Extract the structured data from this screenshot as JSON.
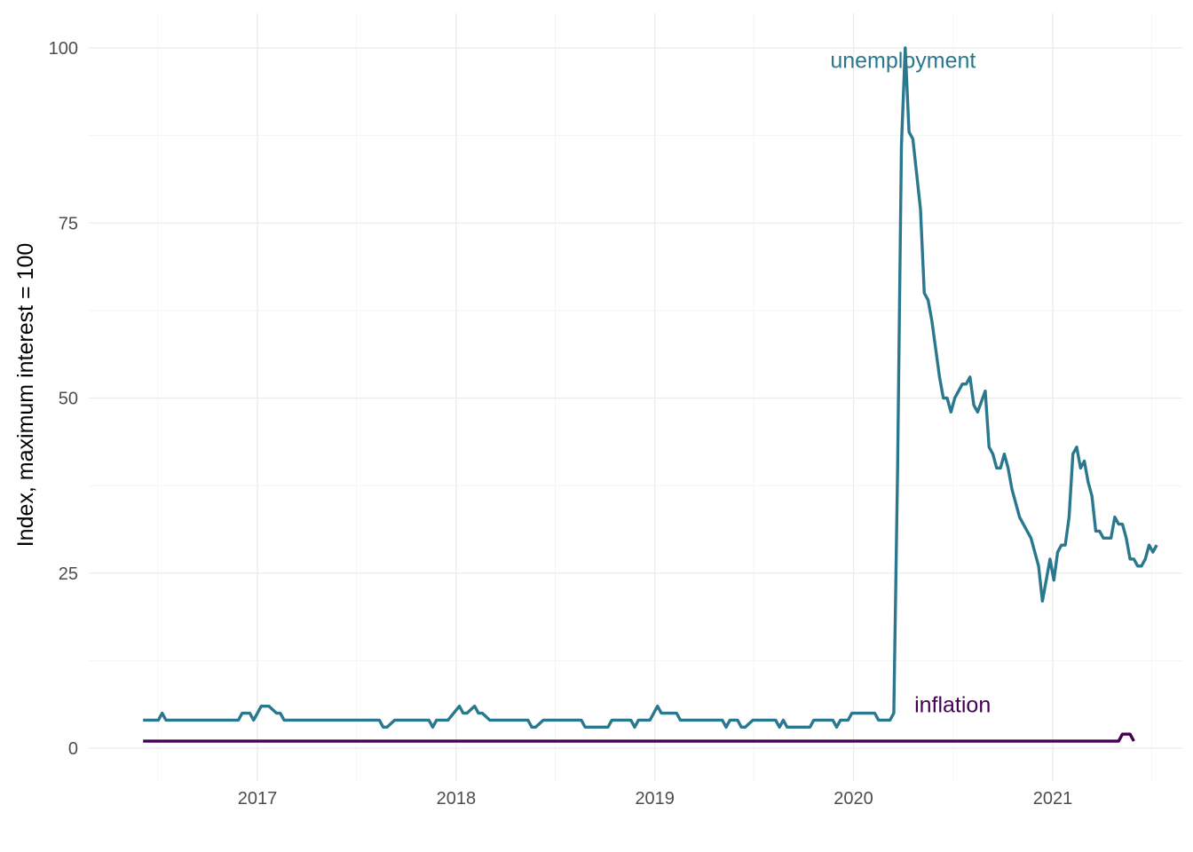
{
  "chart_data": {
    "type": "line",
    "title": "",
    "xlabel": "",
    "ylabel": "Index, maximum interest = 100",
    "ylim": [
      0,
      100
    ],
    "xlim": [
      "2016-06-01",
      "2021-06-01"
    ],
    "y_ticks": [
      "0",
      "25",
      "50",
      "75",
      "100"
    ],
    "x_ticks": [
      "2017",
      "2018",
      "2019",
      "2020",
      "2021"
    ],
    "grid": true,
    "legend": "none",
    "series": [
      {
        "name": "unemployment",
        "color": "#2a788e",
        "label_at": [
          "2020-04-01",
          96
        ],
        "points": [
          [
            "2016-06-05",
            4
          ],
          [
            "2016-07-03",
            4
          ],
          [
            "2016-07-10",
            5
          ],
          [
            "2016-07-17",
            4
          ],
          [
            "2016-08-21",
            4
          ],
          [
            "2016-10-23",
            4
          ],
          [
            "2016-11-27",
            4
          ],
          [
            "2016-12-04",
            5
          ],
          [
            "2016-12-18",
            5
          ],
          [
            "2016-12-25",
            4
          ],
          [
            "2017-01-08",
            6
          ],
          [
            "2017-01-22",
            6
          ],
          [
            "2017-02-05",
            5
          ],
          [
            "2017-02-12",
            5
          ],
          [
            "2017-02-19",
            4
          ],
          [
            "2017-05-07",
            4
          ],
          [
            "2017-08-13",
            4
          ],
          [
            "2017-08-20",
            3
          ],
          [
            "2017-08-27",
            3
          ],
          [
            "2017-09-10",
            4
          ],
          [
            "2017-11-12",
            4
          ],
          [
            "2017-11-19",
            3
          ],
          [
            "2017-11-26",
            4
          ],
          [
            "2017-12-17",
            4
          ],
          [
            "2018-01-07",
            6
          ],
          [
            "2018-01-14",
            5
          ],
          [
            "2018-01-21",
            5
          ],
          [
            "2018-02-04",
            6
          ],
          [
            "2018-02-11",
            5
          ],
          [
            "2018-02-18",
            5
          ],
          [
            "2018-03-04",
            4
          ],
          [
            "2018-05-13",
            4
          ],
          [
            "2018-05-20",
            3
          ],
          [
            "2018-05-27",
            3
          ],
          [
            "2018-06-10",
            4
          ],
          [
            "2018-08-19",
            4
          ],
          [
            "2018-08-26",
            3
          ],
          [
            "2018-10-07",
            3
          ],
          [
            "2018-10-14",
            4
          ],
          [
            "2018-11-18",
            4
          ],
          [
            "2018-11-25",
            3
          ],
          [
            "2018-12-02",
            4
          ],
          [
            "2018-12-23",
            4
          ],
          [
            "2019-01-06",
            6
          ],
          [
            "2019-01-13",
            5
          ],
          [
            "2019-02-10",
            5
          ],
          [
            "2019-02-17",
            4
          ],
          [
            "2019-05-05",
            4
          ],
          [
            "2019-05-12",
            3
          ],
          [
            "2019-05-19",
            4
          ],
          [
            "2019-06-02",
            4
          ],
          [
            "2019-06-09",
            3
          ],
          [
            "2019-06-16",
            3
          ],
          [
            "2019-06-30",
            4
          ],
          [
            "2019-07-28",
            4
          ],
          [
            "2019-08-11",
            4
          ],
          [
            "2019-08-18",
            3
          ],
          [
            "2019-08-25",
            4
          ],
          [
            "2019-09-01",
            3
          ],
          [
            "2019-10-13",
            3
          ],
          [
            "2019-10-20",
            4
          ],
          [
            "2019-11-24",
            4
          ],
          [
            "2019-12-01",
            3
          ],
          [
            "2019-12-08",
            4
          ],
          [
            "2019-12-22",
            4
          ],
          [
            "2019-12-29",
            5
          ],
          [
            "2020-02-09",
            5
          ],
          [
            "2020-02-16",
            4
          ],
          [
            "2020-03-08",
            4
          ],
          [
            "2020-03-15",
            5
          ],
          [
            "2020-03-22",
            40
          ],
          [
            "2020-03-29",
            86
          ],
          [
            "2020-04-05",
            100
          ],
          [
            "2020-04-12",
            88
          ],
          [
            "2020-04-19",
            87
          ],
          [
            "2020-05-03",
            77
          ],
          [
            "2020-05-10",
            65
          ],
          [
            "2020-05-17",
            64
          ],
          [
            "2020-05-24",
            61
          ],
          [
            "2020-06-07",
            53
          ],
          [
            "2020-06-14",
            50
          ],
          [
            "2020-06-21",
            50
          ],
          [
            "2020-06-28",
            48
          ],
          [
            "2020-07-05",
            50
          ],
          [
            "2020-07-19",
            52
          ],
          [
            "2020-07-26",
            52
          ],
          [
            "2020-08-02",
            53
          ],
          [
            "2020-08-09",
            49
          ],
          [
            "2020-08-16",
            48
          ],
          [
            "2020-08-30",
            51
          ],
          [
            "2020-09-06",
            43
          ],
          [
            "2020-09-13",
            42
          ],
          [
            "2020-09-20",
            40
          ],
          [
            "2020-09-27",
            40
          ],
          [
            "2020-10-04",
            42
          ],
          [
            "2020-10-11",
            40
          ],
          [
            "2020-10-18",
            37
          ],
          [
            "2020-11-01",
            33
          ],
          [
            "2020-11-15",
            31
          ],
          [
            "2020-11-22",
            30
          ],
          [
            "2020-11-29",
            28
          ],
          [
            "2020-12-06",
            26
          ],
          [
            "2020-12-13",
            21
          ],
          [
            "2020-12-20",
            24
          ],
          [
            "2020-12-27",
            27
          ],
          [
            "2021-01-03",
            24
          ],
          [
            "2021-01-10",
            28
          ],
          [
            "2021-01-17",
            29
          ],
          [
            "2021-01-24",
            29
          ],
          [
            "2021-01-31",
            33
          ],
          [
            "2021-02-07",
            42
          ],
          [
            "2021-02-14",
            43
          ],
          [
            "2021-02-21",
            40
          ],
          [
            "2021-02-28",
            41
          ],
          [
            "2021-03-07",
            38
          ],
          [
            "2021-03-14",
            36
          ],
          [
            "2021-03-21",
            31
          ],
          [
            "2021-03-28",
            31
          ],
          [
            "2021-04-04",
            30
          ],
          [
            "2021-04-11",
            30
          ],
          [
            "2021-04-18",
            30
          ],
          [
            "2021-04-25",
            33
          ],
          [
            "2021-05-02",
            32
          ],
          [
            "2021-05-09",
            32
          ],
          [
            "2021-05-16",
            30
          ],
          [
            "2021-05-23",
            27
          ],
          [
            "2021-05-30",
            27
          ],
          [
            "2021-06-06",
            26
          ],
          [
            "2021-06-13",
            26
          ],
          [
            "2021-06-20",
            27
          ],
          [
            "2021-06-27",
            29
          ],
          [
            "2021-07-04",
            28
          ],
          [
            "2021-07-11",
            29
          ]
        ]
      },
      {
        "name": "inflation",
        "color": "#440154",
        "label_at": [
          "2020-07-01",
          4
        ],
        "points": [
          [
            "2016-06-05",
            1
          ],
          [
            "2021-05-02",
            1
          ],
          [
            "2021-05-09",
            2
          ],
          [
            "2021-05-16",
            2
          ],
          [
            "2021-05-23",
            2
          ],
          [
            "2021-05-30",
            1
          ]
        ]
      }
    ]
  }
}
